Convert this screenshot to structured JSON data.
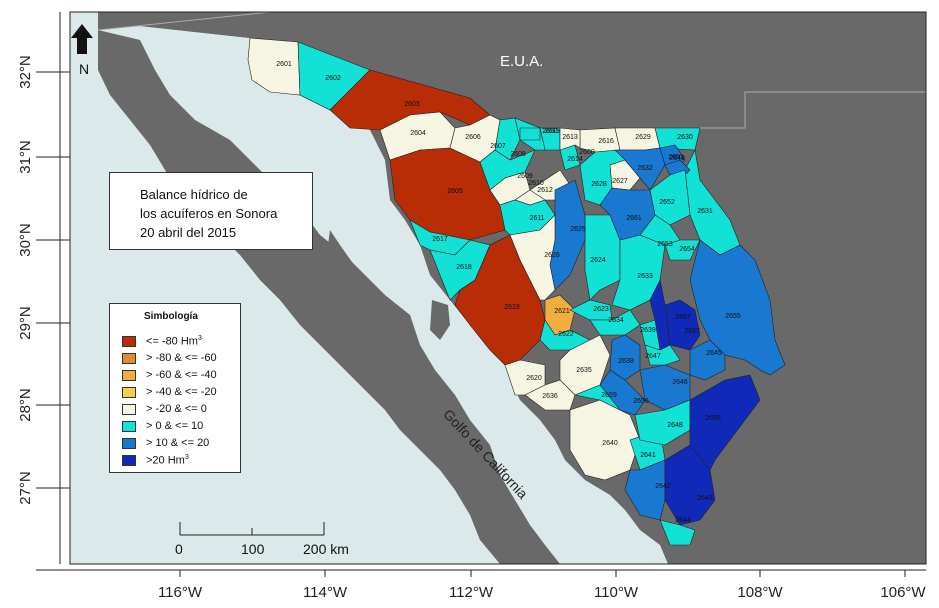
{
  "map": {
    "country_label": "E.U.A.",
    "north_label": "N",
    "sea_label": "Golfo de California",
    "title_lines": [
      "Balance hídrico de",
      "los acuíferos en Sonora",
      "20 abril del 2015"
    ],
    "lat_labels": [
      "32°N",
      "31°N",
      "30°N",
      "29°N",
      "28°N",
      "27°N"
    ],
    "lon_labels": [
      "116°W",
      "114°W",
      "112°W",
      "110°W",
      "108°W",
      "106°W"
    ],
    "scale_labels": [
      "0",
      "100",
      "200 km"
    ],
    "colors": {
      "land": "#696969",
      "sea": "#dbe9ea",
      "c1": "#b82c06",
      "c2": "#e08b32",
      "c3": "#f0ae40",
      "c4": "#f6d24a",
      "c5": "#f6f5e2",
      "c6": "#12e2d6",
      "c7": "#1978d0",
      "c8": "#1129b8"
    }
  },
  "legend": {
    "title": "Simbología",
    "items": [
      {
        "label": "<= -80 Hm",
        "sup": "3",
        "color": "#b82c06"
      },
      {
        "label": "> -80 & <= -60",
        "sup": "",
        "color": "#e08b32"
      },
      {
        "label": "> -60 & <= -40",
        "sup": "",
        "color": "#f0ae40"
      },
      {
        "label": "> -40 & <= -20",
        "sup": "",
        "color": "#f6d24a"
      },
      {
        "label": "> -20 & <= 0",
        "sup": "",
        "color": "#f6f5e2"
      },
      {
        "label": "> 0 & <= 10",
        "sup": "",
        "color": "#12e2d6"
      },
      {
        "label": "> 10 & <= 20",
        "sup": "",
        "color": "#1978d0"
      },
      {
        "label": ">20 Hm",
        "sup": "3",
        "color": "#1129b8"
      }
    ]
  },
  "aquifers": [
    {
      "code": "2601",
      "class": "c5"
    },
    {
      "code": "2602",
      "class": "c6"
    },
    {
      "code": "2603",
      "class": "c1"
    },
    {
      "code": "2604",
      "class": "c5"
    },
    {
      "code": "2605",
      "class": "c1"
    },
    {
      "code": "2606",
      "class": "c5"
    },
    {
      "code": "2607",
      "class": "c6"
    },
    {
      "code": "2608",
      "class": "c6"
    },
    {
      "code": "2609",
      "class": "c5"
    },
    {
      "code": "2610",
      "class": "c5"
    },
    {
      "code": "2611",
      "class": "c6"
    },
    {
      "code": "2612",
      "class": "c5"
    },
    {
      "code": "2613",
      "class": "c6"
    },
    {
      "code": "2614",
      "class": "c6"
    },
    {
      "code": "2615",
      "class": "c6"
    },
    {
      "code": "2616",
      "class": "c5"
    },
    {
      "code": "2617",
      "class": "c6"
    },
    {
      "code": "2618",
      "class": "c6"
    },
    {
      "code": "2619",
      "class": "c1"
    },
    {
      "code": "2620",
      "class": "c5"
    },
    {
      "code": "2621",
      "class": "c3"
    },
    {
      "code": "2622",
      "class": "c6"
    },
    {
      "code": "2623",
      "class": "c6"
    },
    {
      "code": "2624",
      "class": "c6"
    },
    {
      "code": "2625",
      "class": "c7"
    },
    {
      "code": "2626",
      "class": "c5"
    },
    {
      "code": "2627",
      "class": "c5"
    },
    {
      "code": "2628",
      "class": "c6"
    },
    {
      "code": "2629",
      "class": "c5"
    },
    {
      "code": "2630",
      "class": "c6"
    },
    {
      "code": "2631",
      "class": "c6"
    },
    {
      "code": "2632",
      "class": "c7"
    },
    {
      "code": "2633",
      "class": "c6"
    },
    {
      "code": "2634",
      "class": "c6"
    },
    {
      "code": "2635",
      "class": "c5"
    },
    {
      "code": "2636",
      "class": "c5"
    },
    {
      "code": "2637",
      "class": "c8"
    },
    {
      "code": "2638",
      "class": "c7"
    },
    {
      "code": "2639",
      "class": "c6"
    },
    {
      "code": "2640",
      "class": "c5"
    },
    {
      "code": "2641",
      "class": "c6"
    },
    {
      "code": "2642",
      "class": "c7"
    },
    {
      "code": "2643",
      "class": "c8"
    },
    {
      "code": "2644",
      "class": "c6"
    },
    {
      "code": "2645",
      "class": "c7"
    },
    {
      "code": "2646",
      "class": "c7"
    },
    {
      "code": "2647",
      "class": "c6"
    },
    {
      "code": "2648",
      "class": "c6"
    },
    {
      "code": "2649",
      "class": "c7"
    },
    {
      "code": "2650",
      "class": "c6"
    },
    {
      "code": "2651",
      "class": "c7"
    },
    {
      "code": "2652",
      "class": "c6"
    },
    {
      "code": "2653",
      "class": "c6"
    },
    {
      "code": "2654",
      "class": "c6"
    },
    {
      "code": "2655",
      "class": "c7"
    },
    {
      "code": "2656",
      "class": "c7"
    },
    {
      "code": "2657",
      "class": "c8"
    },
    {
      "code": "2658",
      "class": "c8"
    },
    {
      "code": "2659",
      "class": "c6"
    },
    {
      "code": "2660",
      "class": "c5"
    },
    {
      "code": "2661",
      "class": "c7"
    }
  ]
}
